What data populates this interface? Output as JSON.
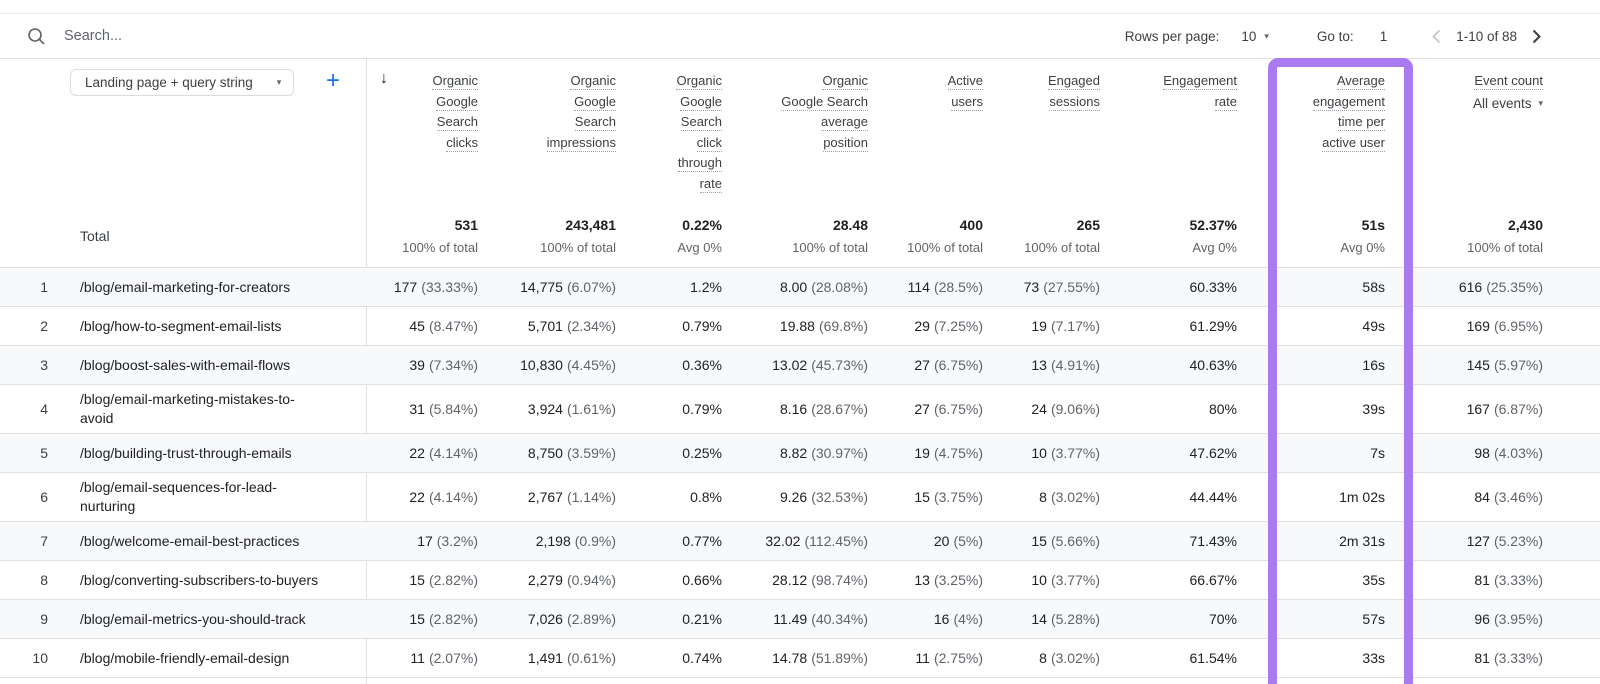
{
  "toolbar": {
    "search_placeholder": "Search...",
    "rows_per_page_label": "Rows per page:",
    "rows_per_page_value": "10",
    "go_to_label": "Go to:",
    "go_to_value": "1",
    "pagination_range": "1-10 of 88"
  },
  "dimension_selector": {
    "label": "Landing page + query string"
  },
  "icons": {
    "caret": "▾",
    "sort_desc": "↓",
    "add": "+"
  },
  "colors": {
    "highlight_purple": "#a97af0",
    "accent_blue": "#1a73e8"
  },
  "table": {
    "total_label": "Total",
    "columns": [
      {
        "id": "organic-google-search-clicks",
        "lines": [
          "Organic",
          "Google",
          "Search",
          "clicks"
        ]
      },
      {
        "id": "organic-google-search-impressions",
        "lines": [
          "Organic",
          "Google",
          "Search",
          "impressions"
        ]
      },
      {
        "id": "organic-google-search-ctr",
        "lines": [
          "Organic",
          "Google",
          "Search",
          "click",
          "through",
          "rate"
        ]
      },
      {
        "id": "organic-google-search-average-position",
        "lines": [
          "Organic",
          "Google Search",
          "average",
          "position"
        ]
      },
      {
        "id": "active-users",
        "lines": [
          "Active",
          "users"
        ]
      },
      {
        "id": "engaged-sessions",
        "lines": [
          "Engaged",
          "sessions"
        ]
      },
      {
        "id": "engagement-rate",
        "lines": [
          "Engagement",
          "rate"
        ]
      },
      {
        "id": "avg-engagement-time",
        "lines": [
          "Average",
          "engagement",
          "time per",
          "active user"
        ],
        "highlighted": true
      },
      {
        "id": "event-count",
        "lines": [
          "Event count"
        ],
        "filter": "All events"
      }
    ],
    "totals": [
      {
        "v": "531",
        "s": "100% of total"
      },
      {
        "v": "243,481",
        "s": "100% of total"
      },
      {
        "v": "0.22%",
        "s": "Avg 0%"
      },
      {
        "v": "28.48",
        "s": "100% of total"
      },
      {
        "v": "400",
        "s": "100% of total"
      },
      {
        "v": "265",
        "s": "100% of total"
      },
      {
        "v": "52.37%",
        "s": "Avg 0%"
      },
      {
        "v": "51s",
        "s": "Avg 0%"
      },
      {
        "v": "2,430",
        "s": "100% of total"
      }
    ],
    "rows": [
      {
        "n": "1",
        "page": "/blog/email-marketing-for-creators",
        "cells": [
          [
            "177",
            "(33.33%)"
          ],
          [
            "14,775",
            "(6.07%)"
          ],
          [
            "1.2%",
            ""
          ],
          [
            "8.00",
            "(28.08%)"
          ],
          [
            "114",
            "(28.5%)"
          ],
          [
            "73",
            "(27.55%)"
          ],
          [
            "60.33%",
            ""
          ],
          [
            "58s",
            ""
          ],
          [
            "616",
            "(25.35%)"
          ]
        ]
      },
      {
        "n": "2",
        "page": "/blog/how-to-segment-email-lists",
        "cells": [
          [
            "45",
            "(8.47%)"
          ],
          [
            "5,701",
            "(2.34%)"
          ],
          [
            "0.79%",
            ""
          ],
          [
            "19.88",
            "(69.8%)"
          ],
          [
            "29",
            "(7.25%)"
          ],
          [
            "19",
            "(7.17%)"
          ],
          [
            "61.29%",
            ""
          ],
          [
            "49s",
            ""
          ],
          [
            "169",
            "(6.95%)"
          ]
        ]
      },
      {
        "n": "3",
        "page": "/blog/boost-sales-with-email-flows",
        "cells": [
          [
            "39",
            "(7.34%)"
          ],
          [
            "10,830",
            "(4.45%)"
          ],
          [
            "0.36%",
            ""
          ],
          [
            "13.02",
            "(45.73%)"
          ],
          [
            "27",
            "(6.75%)"
          ],
          [
            "13",
            "(4.91%)"
          ],
          [
            "40.63%",
            ""
          ],
          [
            "16s",
            ""
          ],
          [
            "145",
            "(5.97%)"
          ]
        ]
      },
      {
        "n": "4",
        "page": "/blog/email-marketing-mistakes-to-",
        "page_line2": "avoid",
        "cells": [
          [
            "31",
            "(5.84%)"
          ],
          [
            "3,924",
            "(1.61%)"
          ],
          [
            "0.79%",
            ""
          ],
          [
            "8.16",
            "(28.67%)"
          ],
          [
            "27",
            "(6.75%)"
          ],
          [
            "24",
            "(9.06%)"
          ],
          [
            "80%",
            ""
          ],
          [
            "39s",
            ""
          ],
          [
            "167",
            "(6.87%)"
          ]
        ]
      },
      {
        "n": "5",
        "page": "/blog/building-trust-through-emails",
        "cells": [
          [
            "22",
            "(4.14%)"
          ],
          [
            "8,750",
            "(3.59%)"
          ],
          [
            "0.25%",
            ""
          ],
          [
            "8.82",
            "(30.97%)"
          ],
          [
            "19",
            "(4.75%)"
          ],
          [
            "10",
            "(3.77%)"
          ],
          [
            "47.62%",
            ""
          ],
          [
            "7s",
            ""
          ],
          [
            "98",
            "(4.03%)"
          ]
        ]
      },
      {
        "n": "6",
        "page": "/blog/email-sequences-for-lead-",
        "page_line2": "nurturing",
        "cells": [
          [
            "22",
            "(4.14%)"
          ],
          [
            "2,767",
            "(1.14%)"
          ],
          [
            "0.8%",
            ""
          ],
          [
            "9.26",
            "(32.53%)"
          ],
          [
            "15",
            "(3.75%)"
          ],
          [
            "8",
            "(3.02%)"
          ],
          [
            "44.44%",
            ""
          ],
          [
            "1m 02s",
            ""
          ],
          [
            "84",
            "(3.46%)"
          ]
        ]
      },
      {
        "n": "7",
        "page": "/blog/welcome-email-best-practices",
        "cells": [
          [
            "17",
            "(3.2%)"
          ],
          [
            "2,198",
            "(0.9%)"
          ],
          [
            "0.77%",
            ""
          ],
          [
            "32.02",
            "(112.45%)"
          ],
          [
            "20",
            "(5%)"
          ],
          [
            "15",
            "(5.66%)"
          ],
          [
            "71.43%",
            ""
          ],
          [
            "2m 31s",
            ""
          ],
          [
            "127",
            "(5.23%)"
          ]
        ]
      },
      {
        "n": "8",
        "page": "/blog/converting-subscribers-to-buyers",
        "cells": [
          [
            "15",
            "(2.82%)"
          ],
          [
            "2,279",
            "(0.94%)"
          ],
          [
            "0.66%",
            ""
          ],
          [
            "28.12",
            "(98.74%)"
          ],
          [
            "13",
            "(3.25%)"
          ],
          [
            "10",
            "(3.77%)"
          ],
          [
            "66.67%",
            ""
          ],
          [
            "35s",
            ""
          ],
          [
            "81",
            "(3.33%)"
          ]
        ]
      },
      {
        "n": "9",
        "page": "/blog/email-metrics-you-should-track",
        "cells": [
          [
            "15",
            "(2.82%)"
          ],
          [
            "7,026",
            "(2.89%)"
          ],
          [
            "0.21%",
            ""
          ],
          [
            "11.49",
            "(40.34%)"
          ],
          [
            "16",
            "(4%)"
          ],
          [
            "14",
            "(5.28%)"
          ],
          [
            "70%",
            ""
          ],
          [
            "57s",
            ""
          ],
          [
            "96",
            "(3.95%)"
          ]
        ]
      },
      {
        "n": "10",
        "page": "/blog/mobile-friendly-email-design",
        "cells": [
          [
            "11",
            "(2.07%)"
          ],
          [
            "1,491",
            "(0.61%)"
          ],
          [
            "0.74%",
            ""
          ],
          [
            "14.78",
            "(51.89%)"
          ],
          [
            "11",
            "(2.75%)"
          ],
          [
            "8",
            "(3.02%)"
          ],
          [
            "61.54%",
            ""
          ],
          [
            "33s",
            ""
          ],
          [
            "81",
            "(3.33%)"
          ]
        ]
      }
    ]
  }
}
